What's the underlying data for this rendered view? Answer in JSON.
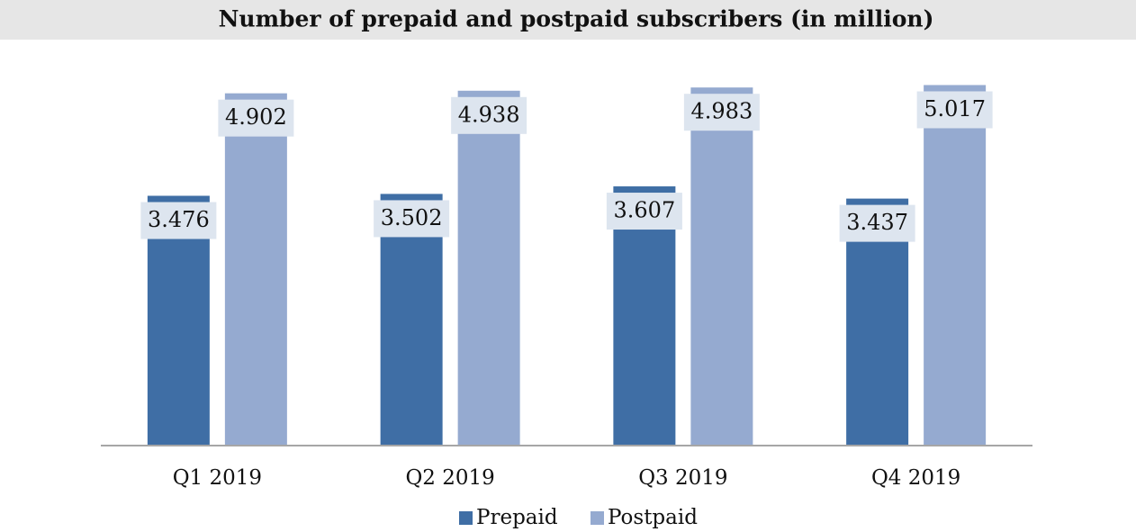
{
  "chart_data": {
    "type": "bar",
    "title": "Number of prepaid and postpaid subscribers (in million)",
    "categories": [
      "Q1 2019",
      "Q2 2019",
      "Q3 2019",
      "Q4 2019"
    ],
    "series": [
      {
        "name": "Prepaid",
        "color": "#3f6ea5",
        "values": [
          3.476,
          3.502,
          3.607,
          3.437
        ]
      },
      {
        "name": "Postpaid",
        "color": "#95aad0",
        "values": [
          4.902,
          4.938,
          4.983,
          5.017
        ]
      }
    ],
    "ylim": [
      0,
      6
    ],
    "legend": "bottom"
  }
}
